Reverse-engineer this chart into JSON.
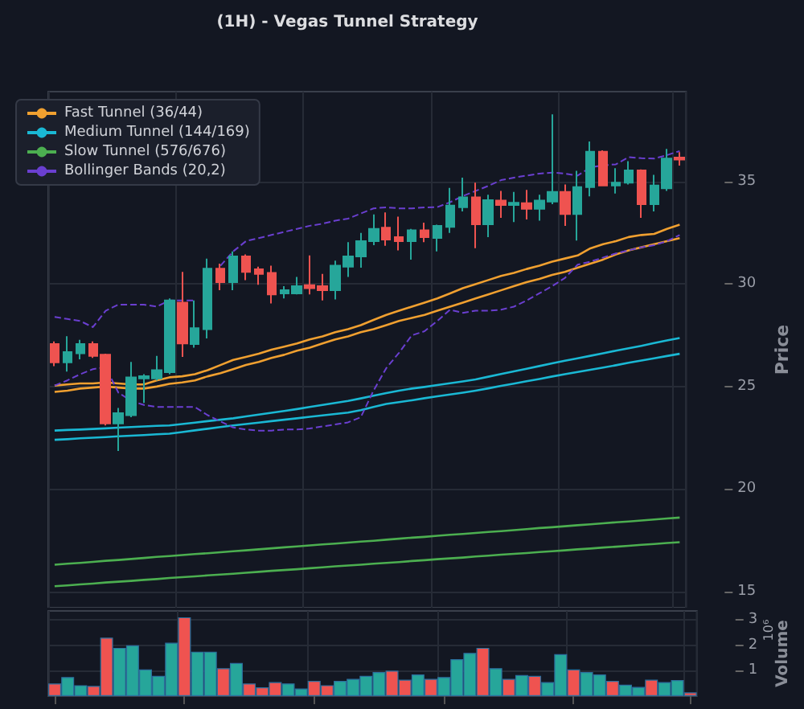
{
  "chart_data": [
    {
      "type": "candlestick",
      "title": "(1H) - Vegas Tunnel Strategy",
      "ylabel": "Price",
      "categories": [
        null,
        null,
        null,
        null,
        null,
        null,
        null,
        null,
        null,
        null,
        null,
        null,
        null,
        null,
        null,
        null,
        null,
        null,
        null,
        null,
        null,
        null,
        null,
        null,
        null,
        null,
        null,
        null,
        null,
        null,
        null,
        null,
        null,
        null,
        null,
        null,
        null,
        null,
        null,
        null,
        null,
        null,
        null,
        null,
        null,
        null,
        null,
        null,
        null,
        null
      ],
      "ohlc": [
        [
          27.07,
          27.2,
          26.0,
          26.18
        ],
        [
          26.18,
          27.46,
          25.73,
          26.68
        ],
        [
          26.62,
          27.28,
          26.33,
          27.07
        ],
        [
          27.07,
          27.2,
          26.4,
          26.5
        ],
        [
          26.55,
          26.6,
          23.1,
          23.2
        ],
        [
          23.2,
          23.95,
          21.85,
          23.7
        ],
        [
          23.6,
          26.2,
          23.5,
          25.45
        ],
        [
          25.4,
          25.6,
          24.2,
          25.5
        ],
        [
          25.4,
          26.5,
          25.3,
          25.8
        ],
        [
          25.7,
          29.3,
          25.6,
          29.2
        ],
        [
          29.1,
          30.6,
          26.45,
          27.1
        ],
        [
          27.07,
          29.2,
          26.9,
          27.85
        ],
        [
          27.8,
          31.25,
          27.35,
          30.75
        ],
        [
          30.75,
          31.0,
          29.7,
          30.1
        ],
        [
          30.1,
          31.6,
          29.7,
          31.35
        ],
        [
          31.35,
          31.45,
          30.2,
          30.6
        ],
        [
          30.73,
          30.85,
          29.97,
          30.5
        ],
        [
          30.55,
          30.9,
          29.06,
          29.5
        ],
        [
          29.55,
          29.9,
          29.3,
          29.7
        ],
        [
          29.55,
          30.35,
          29.5,
          29.9
        ],
        [
          29.95,
          31.4,
          29.5,
          29.8
        ],
        [
          29.9,
          30.5,
          29.2,
          29.7
        ],
        [
          29.7,
          31.15,
          29.25,
          30.9
        ],
        [
          30.85,
          32.05,
          30.35,
          31.35
        ],
        [
          31.35,
          32.5,
          30.8,
          32.1
        ],
        [
          32.1,
          33.4,
          31.9,
          32.7
        ],
        [
          32.76,
          33.5,
          31.87,
          32.18
        ],
        [
          32.3,
          33.3,
          31.65,
          32.1
        ],
        [
          32.1,
          32.7,
          31.2,
          32.63
        ],
        [
          32.63,
          33.0,
          32.05,
          32.3
        ],
        [
          32.26,
          32.9,
          31.6,
          32.84
        ],
        [
          32.8,
          34.7,
          32.5,
          33.84
        ],
        [
          33.76,
          35.2,
          33.55,
          34.24
        ],
        [
          34.24,
          34.95,
          31.76,
          32.92
        ],
        [
          32.92,
          34.37,
          32.3,
          34.1
        ],
        [
          34.08,
          34.55,
          33.24,
          33.87
        ],
        [
          33.87,
          34.5,
          33.03,
          33.97
        ],
        [
          33.95,
          34.6,
          33.16,
          33.68
        ],
        [
          33.68,
          34.37,
          33.1,
          34.08
        ],
        [
          34.03,
          38.29,
          33.9,
          34.5
        ],
        [
          34.5,
          34.87,
          32.84,
          33.42
        ],
        [
          33.42,
          35.53,
          32.13,
          34.74
        ],
        [
          34.74,
          36.97,
          34.29,
          36.47
        ],
        [
          36.47,
          36.53,
          34.82,
          34.82
        ],
        [
          34.82,
          35.66,
          34.42,
          34.95
        ],
        [
          34.95,
          36.0,
          34.87,
          35.55
        ],
        [
          35.55,
          35.6,
          33.24,
          33.9
        ],
        [
          33.9,
          35.34,
          33.55,
          34.82
        ],
        [
          34.68,
          36.6,
          34.55,
          36.13
        ],
        [
          36.18,
          36.45,
          35.79,
          36.08
        ]
      ],
      "colors": [
        "#ef5350",
        "#26a69a",
        "#26a69a",
        "#ef5350",
        "#ef5350",
        "#26a69a",
        "#26a69a",
        "#26a69a",
        "#26a69a",
        "#26a69a",
        "#ef5350",
        "#26a69a",
        "#26a69a",
        "#ef5350",
        "#26a69a",
        "#ef5350",
        "#ef5350",
        "#ef5350",
        "#26a69a",
        "#26a69a",
        "#ef5350",
        "#ef5350",
        "#26a69a",
        "#26a69a",
        "#26a69a",
        "#26a69a",
        "#ef5350",
        "#ef5350",
        "#26a69a",
        "#ef5350",
        "#26a69a",
        "#26a69a",
        "#26a69a",
        "#ef5350",
        "#26a69a",
        "#ef5350",
        "#26a69a",
        "#ef5350",
        "#26a69a",
        "#26a69a",
        "#ef5350",
        "#26a69a",
        "#26a69a",
        "#ef5350",
        "#26a69a",
        "#26a69a",
        "#ef5350",
        "#26a69a",
        "#26a69a",
        "#ef5350"
      ],
      "series": [
        {
          "type": "line",
          "name": "Fast Tunnel (36/44)",
          "color": "#f0a030",
          "values": [
            25.05,
            25.1,
            25.15,
            25.15,
            25.2,
            25.15,
            25.1,
            25.1,
            25.3,
            25.45,
            25.5,
            25.6,
            25.8,
            26.05,
            26.3,
            26.45,
            26.6,
            26.8,
            26.95,
            27.1,
            27.3,
            27.45,
            27.65,
            27.8,
            28.0,
            28.25,
            28.5,
            28.7,
            28.9,
            29.1,
            29.3,
            29.55,
            29.8,
            30.0,
            30.2,
            30.4,
            30.55,
            30.74,
            30.9,
            31.1,
            31.25,
            31.4,
            31.75,
            31.95,
            32.1,
            32.3,
            32.4,
            32.45,
            32.7,
            32.9
          ]
        },
        {
          "type": "line",
          "color": "#f0a030",
          "values": [
            24.74,
            24.8,
            24.9,
            24.95,
            25.0,
            24.95,
            24.9,
            24.9,
            25.0,
            25.13,
            25.2,
            25.3,
            25.5,
            25.65,
            25.85,
            26.05,
            26.2,
            26.4,
            26.55,
            26.75,
            26.9,
            27.1,
            27.3,
            27.45,
            27.65,
            27.8,
            28.0,
            28.2,
            28.35,
            28.5,
            28.7,
            28.9,
            29.1,
            29.3,
            29.5,
            29.7,
            29.9,
            30.1,
            30.25,
            30.45,
            30.6,
            30.8,
            31.0,
            31.2,
            31.45,
            31.65,
            31.8,
            31.95,
            32.1,
            32.25
          ]
        },
        {
          "type": "line",
          "name": "Medium Tunnel (144/169)",
          "color": "#1ab8d4",
          "values": [
            22.85,
            22.88,
            22.9,
            22.93,
            22.96,
            22.99,
            23.02,
            23.05,
            23.08,
            23.1,
            23.17,
            23.24,
            23.31,
            23.38,
            23.45,
            23.54,
            23.63,
            23.72,
            23.81,
            23.9,
            24.0,
            24.1,
            24.2,
            24.3,
            24.42,
            24.55,
            24.68,
            24.8,
            24.9,
            24.98,
            25.07,
            25.16,
            25.25,
            25.35,
            25.48,
            25.61,
            25.74,
            25.87,
            26.0,
            26.13,
            26.26,
            26.38,
            26.5,
            26.62,
            26.75,
            26.87,
            26.99,
            27.12,
            27.25,
            27.37
          ]
        },
        {
          "type": "line",
          "color": "#1ab8d4",
          "values": [
            22.4,
            22.43,
            22.47,
            22.5,
            22.53,
            22.57,
            22.6,
            22.63,
            22.67,
            22.7,
            22.78,
            22.86,
            22.94,
            23.02,
            23.1,
            23.17,
            23.24,
            23.31,
            23.38,
            23.45,
            23.52,
            23.59,
            23.66,
            23.73,
            23.85,
            24.0,
            24.15,
            24.24,
            24.33,
            24.43,
            24.52,
            24.61,
            24.7,
            24.8,
            24.91,
            25.03,
            25.14,
            25.26,
            25.37,
            25.49,
            25.6,
            25.71,
            25.82,
            25.93,
            26.04,
            26.16,
            26.27,
            26.38,
            26.49,
            26.6
          ]
        },
        {
          "type": "line",
          "name": "Slow Tunnel (576/676)",
          "color": "#4caf50",
          "values": [
            16.3,
            16.35,
            16.39,
            16.44,
            16.49,
            16.53,
            16.58,
            16.63,
            16.68,
            16.72,
            16.77,
            16.82,
            16.86,
            16.91,
            16.96,
            17.0,
            17.05,
            17.1,
            17.15,
            17.19,
            17.24,
            17.29,
            17.33,
            17.38,
            17.43,
            17.47,
            17.52,
            17.57,
            17.62,
            17.66,
            17.71,
            17.76,
            17.8,
            17.85,
            17.9,
            17.94,
            17.99,
            18.04,
            18.09,
            18.13,
            18.18,
            18.23,
            18.27,
            18.32,
            18.37,
            18.41,
            18.46,
            18.51,
            18.56,
            18.6
          ]
        },
        {
          "type": "line",
          "color": "#4caf50",
          "values": [
            15.25,
            15.29,
            15.34,
            15.38,
            15.43,
            15.47,
            15.51,
            15.56,
            15.6,
            15.65,
            15.69,
            15.73,
            15.78,
            15.82,
            15.86,
            15.91,
            15.95,
            16.0,
            16.04,
            16.08,
            16.13,
            16.17,
            16.22,
            16.26,
            16.3,
            16.35,
            16.39,
            16.43,
            16.48,
            16.52,
            16.57,
            16.61,
            16.65,
            16.7,
            16.74,
            16.79,
            16.83,
            16.87,
            16.92,
            16.96,
            17.0,
            17.05,
            17.09,
            17.14,
            17.18,
            17.22,
            17.27,
            17.31,
            17.36,
            17.4
          ]
        },
        {
          "type": "line",
          "name": "Bollinger Bands (20,2)",
          "color": "#6a3fd0",
          "line_style": "dashed",
          "values": [
            28.4,
            28.3,
            28.2,
            27.9,
            28.7,
            29.0,
            29.0,
            29.0,
            28.9,
            29.2,
            29.2,
            29.2,
            null,
            30.9,
            31.6,
            32.1,
            32.25,
            32.4,
            32.55,
            32.7,
            32.85,
            32.95,
            33.1,
            33.2,
            33.45,
            33.7,
            33.75,
            33.7,
            33.7,
            33.75,
            33.76,
            34.0,
            34.3,
            34.55,
            34.8,
            35.08,
            35.2,
            35.3,
            35.4,
            35.45,
            35.4,
            35.3,
            35.7,
            35.8,
            35.85,
            36.2,
            36.15,
            36.13,
            36.3,
            36.5
          ]
        },
        {
          "type": "line",
          "color": "#6a3fd0",
          "line_style": "dashed",
          "values": [
            25.05,
            25.3,
            25.6,
            25.85,
            25.95,
            24.7,
            24.3,
            24.1,
            24.0,
            24.0,
            24.0,
            24.0,
            23.6,
            23.3,
            23.0,
            22.9,
            22.85,
            22.85,
            22.9,
            22.9,
            22.95,
            23.05,
            23.15,
            23.25,
            23.5,
            24.8,
            25.9,
            26.65,
            27.5,
            27.7,
            28.2,
            28.75,
            28.6,
            28.7,
            28.7,
            28.75,
            28.9,
            29.2,
            29.55,
            29.9,
            30.3,
            30.95,
            31.1,
            31.3,
            31.5,
            31.65,
            31.8,
            31.9,
            32.1,
            32.4
          ]
        }
      ],
      "ylim": [
        14.2,
        39.4
      ],
      "yticks": [
        15,
        20,
        25,
        30,
        35
      ],
      "grid": true,
      "legend": "top left"
    },
    {
      "type": "bar",
      "ylabel": "Volume",
      "annotations": [
        "10⁶"
      ],
      "categories": [
        null,
        null,
        null,
        null,
        null,
        null,
        null,
        null,
        null,
        null,
        null,
        null,
        null,
        null,
        null,
        null,
        null,
        null,
        null,
        null,
        null,
        null,
        null,
        null,
        null,
        null,
        null,
        null,
        null,
        null,
        null,
        null,
        null,
        null,
        null,
        null,
        null,
        null,
        null,
        null,
        null,
        null,
        null,
        null,
        null,
        null,
        null,
        null,
        null,
        null
      ],
      "values": [
        0.5,
        0.75,
        0.43,
        0.4,
        2.3,
        1.9,
        2.0,
        1.05,
        0.8,
        2.1,
        3.1,
        1.75,
        1.75,
        1.1,
        1.3,
        0.5,
        0.35,
        0.55,
        0.5,
        0.3,
        0.6,
        0.43,
        0.6,
        0.68,
        0.8,
        0.95,
        1.0,
        0.65,
        0.85,
        0.68,
        0.75,
        1.45,
        1.7,
        1.9,
        1.1,
        0.68,
        0.83,
        0.8,
        0.55,
        1.65,
        1.05,
        0.95,
        0.85,
        0.6,
        0.45,
        0.36,
        0.65,
        0.55,
        0.63,
        0.15
      ],
      "colors": [
        "#ef5350",
        "#26a69a",
        "#26a69a",
        "#ef5350",
        "#ef5350",
        "#26a69a",
        "#26a69a",
        "#26a69a",
        "#26a69a",
        "#26a69a",
        "#ef5350",
        "#26a69a",
        "#26a69a",
        "#ef5350",
        "#26a69a",
        "#ef5350",
        "#ef5350",
        "#ef5350",
        "#26a69a",
        "#26a69a",
        "#ef5350",
        "#ef5350",
        "#26a69a",
        "#26a69a",
        "#26a69a",
        "#26a69a",
        "#ef5350",
        "#ef5350",
        "#26a69a",
        "#ef5350",
        "#26a69a",
        "#26a69a",
        "#26a69a",
        "#ef5350",
        "#26a69a",
        "#ef5350",
        "#26a69a",
        "#ef5350",
        "#26a69a",
        "#26a69a",
        "#ef5350",
        "#26a69a",
        "#26a69a",
        "#ef5350",
        "#26a69a",
        "#26a69a",
        "#ef5350",
        "#26a69a",
        "#26a69a",
        "#ef5350"
      ],
      "ylim": [
        0,
        3.35
      ],
      "yticks": [
        1,
        2,
        3
      ],
      "grid": true
    }
  ]
}
